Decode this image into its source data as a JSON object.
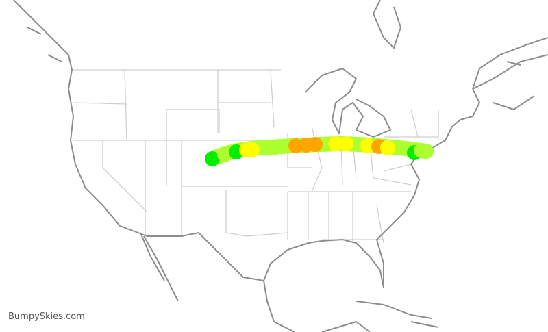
{
  "watermark": "BumpySkies.com",
  "legend_colors": {
    "smooth": "#00ee00",
    "light": "#adff2f",
    "moderate": "#ffff00",
    "heavy": "#ffa500"
  },
  "route": {
    "base_level": "light",
    "segments": [
      "smooth",
      "light",
      "smooth",
      "moderate",
      "moderate",
      "light",
      "heavy",
      "heavy",
      "heavy",
      "moderate",
      "moderate",
      "moderate",
      "heavy",
      "moderate",
      "smooth",
      "light",
      "light"
    ]
  }
}
